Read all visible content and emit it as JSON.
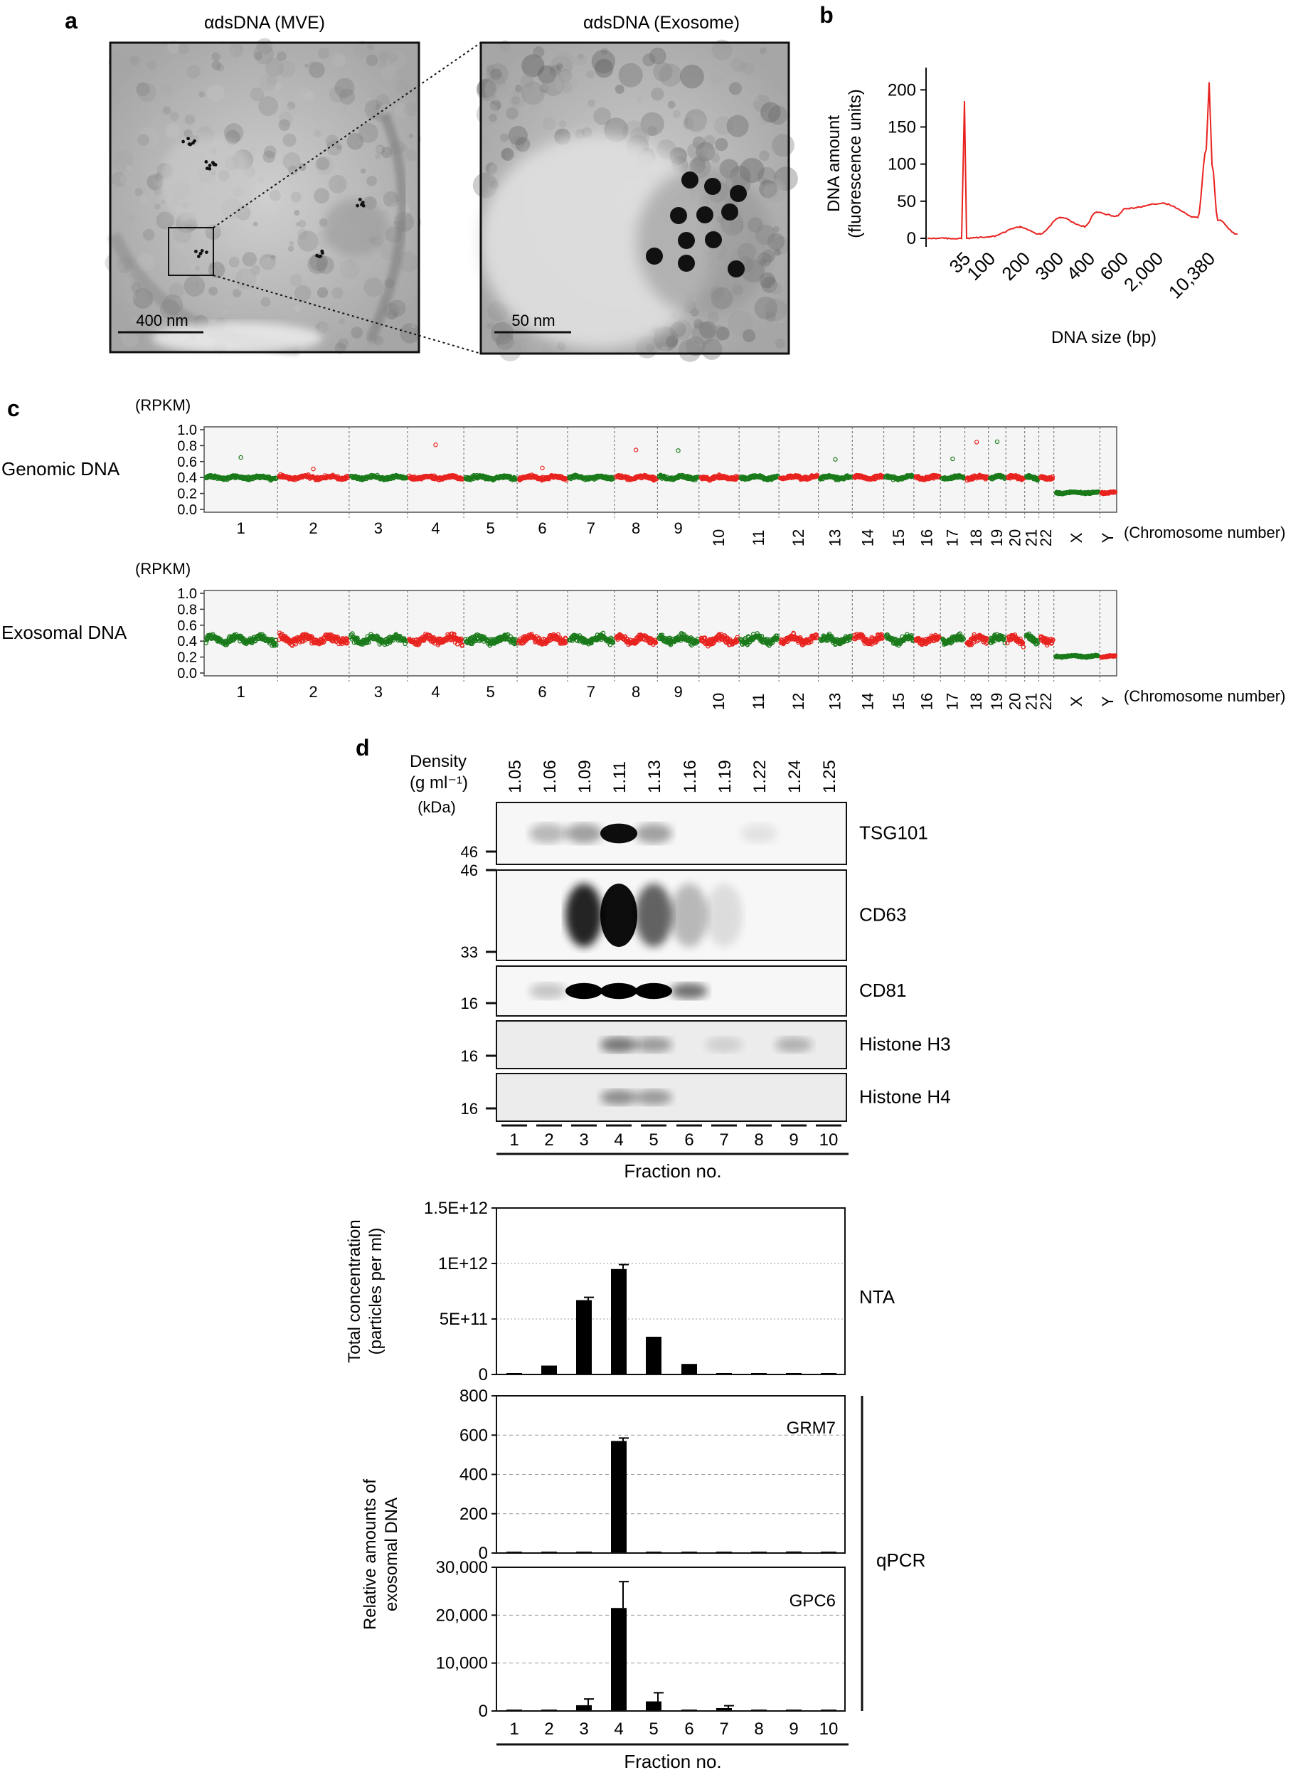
{
  "panels": {
    "a": {
      "letter": "a",
      "left_title": "αdsDNA (MVE)",
      "right_title": "αdsDNA (Exosome)",
      "left_scale": "400 nm",
      "right_scale": "50 nm"
    },
    "b": {
      "letter": "b",
      "ylabel_line1": "DNA amount",
      "ylabel_line2": "(fluorescence units)",
      "xlabel": "DNA size (bp)",
      "yticks": [
        "200",
        "150",
        "100",
        "50",
        "0"
      ],
      "xticks": [
        "35",
        "100",
        "200",
        "300",
        "400",
        "600",
        "2,000",
        "10,380"
      ],
      "color": "#e8231f"
    },
    "c": {
      "letter": "c",
      "unit": "(RPKM)",
      "xlabel": "(Chromosome number)",
      "yticks": [
        "1.0",
        "0.8",
        "0.6",
        "0.4",
        "0.2",
        "0.0"
      ],
      "chromosomes": [
        "1",
        "2",
        "3",
        "4",
        "5",
        "6",
        "7",
        "8",
        "9",
        "10",
        "11",
        "12",
        "13",
        "14",
        "15",
        "16",
        "17",
        "18",
        "19",
        "20",
        "21",
        "22",
        "X",
        "Y"
      ],
      "tracks": [
        {
          "label": "Genomic DNA",
          "mean": 0.4,
          "spread": 0.03
        },
        {
          "label": "Exosomal DNA",
          "mean": 0.42,
          "spread": 0.07
        }
      ],
      "colors": {
        "green": "#1a7a1a",
        "red": "#e8231f"
      }
    },
    "d": {
      "letter": "d",
      "density_label": "Density",
      "density_unit": "(g ml⁻¹)",
      "kda_label": "(kDa)",
      "densities": [
        "1.05",
        "1.06",
        "1.09",
        "1.11",
        "1.13",
        "1.16",
        "1.19",
        "1.22",
        "1.24",
        "1.25"
      ],
      "blots": [
        {
          "name": "TSG101",
          "markers": [
            "46"
          ]
        },
        {
          "name": "CD63",
          "markers": [
            "46",
            "33"
          ]
        },
        {
          "name": "CD81",
          "markers": [
            "16"
          ]
        },
        {
          "name": "Histone H3",
          "markers": [
            "16"
          ]
        },
        {
          "name": "Histone H4",
          "markers": [
            "16"
          ]
        }
      ],
      "fractions": [
        "1",
        "2",
        "3",
        "4",
        "5",
        "6",
        "7",
        "8",
        "9",
        "10"
      ],
      "fraction_label": "Fraction no.",
      "nta_label": "NTA",
      "nta_ylabel_line1": "Total concentration",
      "nta_ylabel_line2": "(particles per ml)",
      "nta_yticks": [
        "1.5E+12",
        "1E+12",
        "5E+11",
        "0"
      ],
      "qpcr_label": "qPCR",
      "qpcr_ylabel_line1": "Relative amounts of",
      "qpcr_ylabel_line2": "exosomal DNA",
      "grm7_label": "GRM7",
      "grm7_yticks": [
        "800",
        "600",
        "400",
        "200",
        "0"
      ],
      "gpc6_label": "GPC6",
      "gpc6_yticks": [
        "30,000",
        "20,000",
        "10,000",
        "0"
      ]
    }
  },
  "chart_data": [
    {
      "type": "line",
      "panel": "b",
      "xlabel": "DNA size (bp)",
      "ylabel": "DNA amount (fluorescence units)",
      "ylim": [
        0,
        230
      ],
      "x_ticks": [
        "35",
        "100",
        "200",
        "300",
        "400",
        "600",
        "2,000",
        "10,380"
      ],
      "series": [
        {
          "x": [
            "35",
            "100",
            "200",
            "300",
            "400",
            "600",
            "2,000",
            "10,380"
          ],
          "values": [
            185,
            2,
            15,
            28,
            35,
            40,
            47,
            210
          ]
        }
      ]
    },
    {
      "type": "bar",
      "panel": "d-NTA",
      "categories": [
        "1",
        "2",
        "3",
        "4",
        "5",
        "6",
        "7",
        "8",
        "9",
        "10"
      ],
      "xlabel": "Fraction no.",
      "ylabel": "Total concentration (particles per ml)",
      "ylim": [
        0,
        1500000000000.0
      ],
      "values": [
        10000000000.0,
        80000000000.0,
        670000000000.0,
        950000000000.0,
        340000000000.0,
        95000000000.0,
        6000000000.0,
        5000000000.0,
        4000000000.0,
        3000000000.0
      ],
      "errors": [
        0,
        0,
        25000000000.0,
        40000000000.0,
        0,
        0,
        0,
        0,
        0,
        0
      ]
    },
    {
      "type": "bar",
      "panel": "d-GRM7",
      "title": "GRM7",
      "categories": [
        "1",
        "2",
        "3",
        "4",
        "5",
        "6",
        "7",
        "8",
        "9",
        "10"
      ],
      "ylim": [
        0,
        800
      ],
      "values": [
        1,
        2,
        2,
        570,
        3,
        1,
        1,
        2,
        8,
        2
      ],
      "errors": [
        0,
        0,
        0,
        15,
        0,
        0,
        0,
        0,
        0,
        0
      ]
    },
    {
      "type": "bar",
      "panel": "d-GPC6",
      "title": "GPC6",
      "categories": [
        "1",
        "2",
        "3",
        "4",
        "5",
        "6",
        "7",
        "8",
        "9",
        "10"
      ],
      "xlabel": "Fraction no.",
      "ylim": [
        0,
        30000
      ],
      "values": [
        100,
        200,
        1200,
        21500,
        2000,
        100,
        600,
        100,
        150,
        50
      ],
      "errors": [
        0,
        0,
        1300,
        5500,
        1800,
        0,
        500,
        0,
        0,
        0
      ]
    }
  ]
}
